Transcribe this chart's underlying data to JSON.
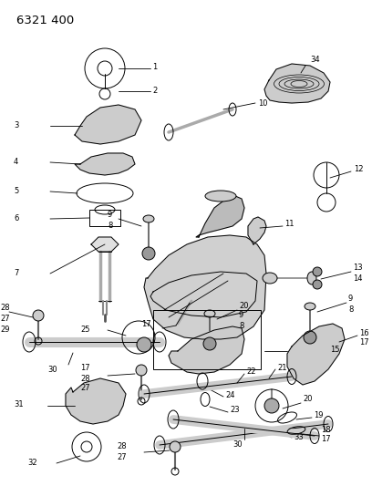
{
  "title": "6321 400",
  "bg_color": "#ffffff",
  "fig_width": 4.08,
  "fig_height": 5.33,
  "dpi": 100,
  "lfs": 6.0,
  "tfs": 9.5
}
